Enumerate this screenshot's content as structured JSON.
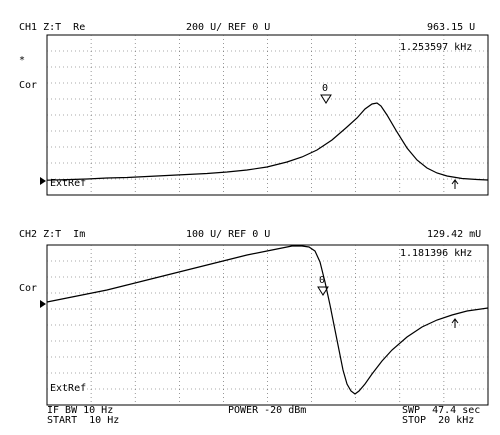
{
  "ch1": {
    "header_left": "CH1 Z:T  Re",
    "header_center": "200 U/ REF 0 U",
    "header_right": "963.15 U",
    "marker_freq": "1.253597 kHz",
    "star": "*",
    "cor": "Cor",
    "extref": "ExtRef",
    "marker_id": "0",
    "trace": [
      [
        0,
        180.2
      ],
      [
        20,
        179.6
      ],
      [
        40,
        179
      ],
      [
        60,
        178
      ],
      [
        80,
        177.5
      ],
      [
        100,
        176.5
      ],
      [
        120,
        175.5
      ],
      [
        140,
        174.5
      ],
      [
        160,
        173.5
      ],
      [
        180,
        172
      ],
      [
        200,
        170
      ],
      [
        220,
        167
      ],
      [
        240,
        162
      ],
      [
        255,
        157
      ],
      [
        270,
        150
      ],
      [
        285,
        140
      ],
      [
        300,
        127
      ],
      [
        310,
        118
      ],
      [
        318,
        109
      ],
      [
        325,
        104
      ],
      [
        330,
        103
      ],
      [
        334,
        106
      ],
      [
        340,
        115
      ],
      [
        350,
        132
      ],
      [
        360,
        148
      ],
      [
        370,
        160
      ],
      [
        380,
        168
      ],
      [
        390,
        173
      ],
      [
        400,
        176
      ],
      [
        415,
        178.5
      ],
      [
        430,
        179.5
      ],
      [
        441,
        180
      ]
    ]
  },
  "ch2": {
    "header_left": "CH2 Z:T  Im",
    "header_center": "100 U/ REF 0 U",
    "header_right": "129.42 mU",
    "marker_freq": "1.181396 kHz",
    "cor": "Cor",
    "extref": "ExtRef",
    "marker_id": "0",
    "trace": [
      [
        0,
        302
      ],
      [
        10,
        300
      ],
      [
        20,
        298
      ],
      [
        40,
        294
      ],
      [
        60,
        290
      ],
      [
        80,
        285
      ],
      [
        100,
        280
      ],
      [
        120,
        275
      ],
      [
        140,
        270
      ],
      [
        160,
        265
      ],
      [
        180,
        260
      ],
      [
        200,
        255
      ],
      [
        220,
        251
      ],
      [
        235,
        248
      ],
      [
        245,
        246
      ],
      [
        255,
        246
      ],
      [
        262,
        247
      ],
      [
        268,
        251
      ],
      [
        273,
        262
      ],
      [
        278,
        282
      ],
      [
        283,
        305
      ],
      [
        288,
        330
      ],
      [
        292,
        350
      ],
      [
        296,
        370
      ],
      [
        300,
        384
      ],
      [
        304,
        391
      ],
      [
        308,
        394
      ],
      [
        312,
        391
      ],
      [
        318,
        384
      ],
      [
        325,
        374
      ],
      [
        335,
        361
      ],
      [
        345,
        350
      ],
      [
        360,
        337
      ],
      [
        375,
        327
      ],
      [
        390,
        320
      ],
      [
        405,
        315
      ],
      [
        420,
        311
      ],
      [
        441,
        308
      ]
    ]
  },
  "footer": {
    "ifbw": "IF BW 10 Hz",
    "power": "POWER -20 dBm",
    "swp": "SWP  47.4 sec",
    "start": "START  10 Hz",
    "stop": "STOP  20 kHz"
  },
  "colors": {
    "trace": "#000000",
    "grid": "#555555",
    "background": "#ffffff"
  }
}
